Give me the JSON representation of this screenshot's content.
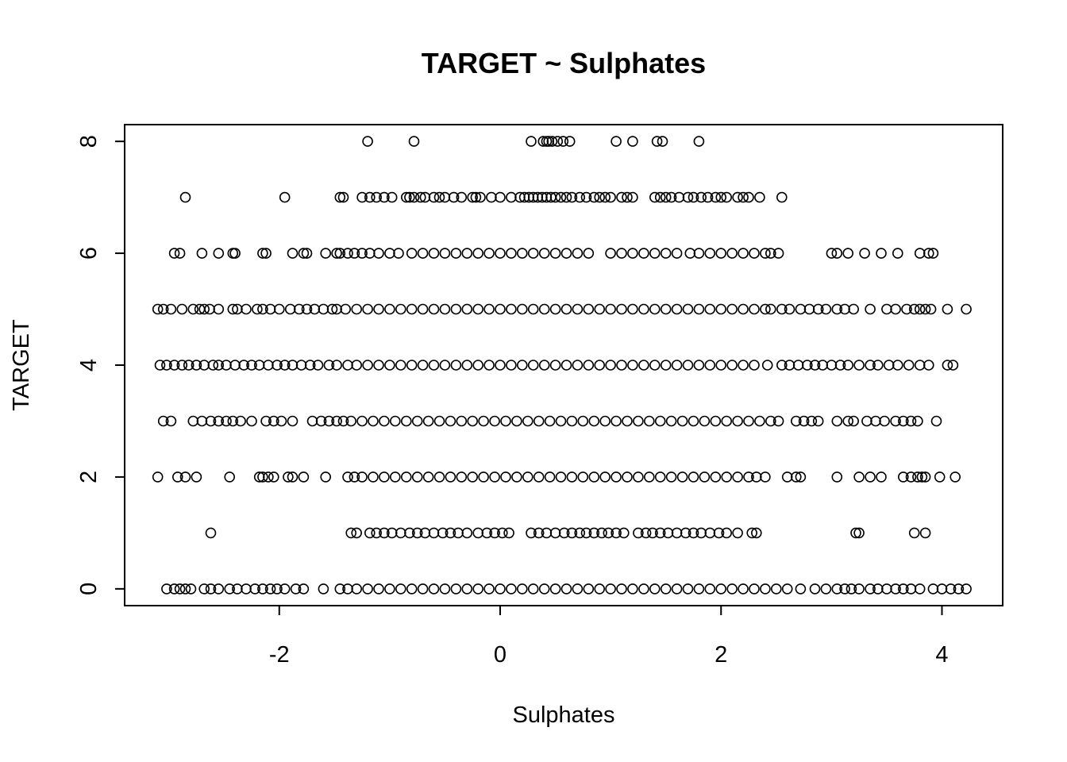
{
  "chart_data": {
    "type": "scatter",
    "title": "TARGET ~ Sulphates",
    "xlabel": "Sulphates",
    "ylabel": "TARGET",
    "xlim": [
      -3.4,
      4.55
    ],
    "ylim": [
      -0.3,
      8.3
    ],
    "xticks": [
      -2,
      0,
      2,
      4
    ],
    "yticks": [
      0,
      2,
      4,
      6,
      8
    ],
    "grid": false,
    "legend": "none",
    "marker": "open-circle",
    "series": [
      {
        "y": 8,
        "x": [
          -1.2,
          -0.78,
          0.28,
          0.39,
          0.42,
          0.44,
          0.47,
          0.52,
          0.57,
          0.63,
          1.05,
          1.2,
          1.42,
          1.47,
          1.8
        ]
      },
      {
        "y": 7,
        "x": [
          -2.85,
          -1.95,
          -1.45,
          -1.42,
          -1.25,
          -1.18,
          -1.12,
          -1.05,
          -0.98,
          -0.85,
          -0.82,
          -0.78,
          -0.72,
          -0.68,
          -0.6,
          -0.55,
          -0.5,
          -0.42,
          -0.35,
          -0.25,
          -0.22,
          -0.18,
          -0.08,
          0.0,
          0.1,
          0.18,
          0.22,
          0.26,
          0.3,
          0.34,
          0.38,
          0.42,
          0.46,
          0.5,
          0.55,
          0.6,
          0.65,
          0.72,
          0.78,
          0.85,
          0.9,
          0.95,
          1.0,
          1.1,
          1.15,
          1.2,
          1.4,
          1.45,
          1.5,
          1.55,
          1.62,
          1.7,
          1.75,
          1.82,
          1.88,
          1.95,
          2.0,
          2.05,
          2.15,
          2.2,
          2.25,
          2.35,
          2.55
        ]
      },
      {
        "y": 6,
        "x": [
          -2.95,
          -2.9,
          -2.7,
          -2.55,
          -2.42,
          -2.4,
          -2.15,
          -2.12,
          -1.88,
          -1.78,
          -1.75,
          -1.58,
          -1.48,
          -1.45,
          -1.38,
          -1.32,
          -1.25,
          -1.18,
          -1.1,
          -1.0,
          -0.92,
          -0.8,
          -0.7,
          -0.6,
          -0.5,
          -0.4,
          -0.3,
          -0.2,
          -0.1,
          0.0,
          0.1,
          0.2,
          0.3,
          0.4,
          0.5,
          0.6,
          0.7,
          0.8,
          1.0,
          1.1,
          1.2,
          1.3,
          1.4,
          1.5,
          1.6,
          1.72,
          1.8,
          1.9,
          2.0,
          2.1,
          2.2,
          2.3,
          2.4,
          2.45,
          2.52,
          3.0,
          3.05,
          3.15,
          3.3,
          3.45,
          3.6,
          3.8,
          3.88,
          3.92
        ]
      },
      {
        "y": 5,
        "x": [
          -3.1,
          -3.05,
          -2.98,
          -2.88,
          -2.78,
          -2.72,
          -2.68,
          -2.63,
          -2.55,
          -2.42,
          -2.38,
          -2.3,
          -2.2,
          -2.15,
          -2.08,
          -2.0,
          -1.9,
          -1.82,
          -1.75,
          -1.68,
          -1.6,
          -1.52,
          -1.48,
          -1.4,
          -1.3,
          -1.2,
          -1.1,
          -1.0,
          -0.9,
          -0.8,
          -0.7,
          -0.6,
          -0.5,
          -0.4,
          -0.3,
          -0.2,
          -0.1,
          0.0,
          0.1,
          0.2,
          0.3,
          0.4,
          0.5,
          0.6,
          0.7,
          0.8,
          0.9,
          1.0,
          1.1,
          1.2,
          1.3,
          1.4,
          1.5,
          1.6,
          1.7,
          1.8,
          1.9,
          2.0,
          2.1,
          2.2,
          2.3,
          2.4,
          2.45,
          2.55,
          2.62,
          2.72,
          2.8,
          2.88,
          2.95,
          3.05,
          3.12,
          3.2,
          3.35,
          3.5,
          3.58,
          3.68,
          3.75,
          3.8,
          3.85,
          3.9,
          4.05,
          4.22
        ]
      },
      {
        "y": 4,
        "x": [
          -3.08,
          -3.02,
          -2.95,
          -2.88,
          -2.82,
          -2.75,
          -2.68,
          -2.6,
          -2.55,
          -2.48,
          -2.4,
          -2.32,
          -2.25,
          -2.18,
          -2.1,
          -2.02,
          -1.95,
          -1.88,
          -1.8,
          -1.72,
          -1.65,
          -1.55,
          -1.48,
          -1.38,
          -1.3,
          -1.2,
          -1.1,
          -1.0,
          -0.9,
          -0.8,
          -0.7,
          -0.6,
          -0.5,
          -0.4,
          -0.3,
          -0.2,
          -0.1,
          0.0,
          0.1,
          0.2,
          0.3,
          0.4,
          0.5,
          0.6,
          0.7,
          0.8,
          0.9,
          1.0,
          1.1,
          1.2,
          1.3,
          1.4,
          1.5,
          1.6,
          1.7,
          1.8,
          1.9,
          2.0,
          2.1,
          2.2,
          2.3,
          2.42,
          2.55,
          2.62,
          2.7,
          2.78,
          2.85,
          2.92,
          3.0,
          3.08,
          3.15,
          3.25,
          3.35,
          3.42,
          3.52,
          3.6,
          3.7,
          3.8,
          3.88,
          4.05,
          4.1
        ]
      },
      {
        "y": 3,
        "x": [
          -3.05,
          -2.98,
          -2.78,
          -2.7,
          -2.62,
          -2.55,
          -2.48,
          -2.42,
          -2.35,
          -2.25,
          -2.12,
          -2.05,
          -1.98,
          -1.88,
          -1.7,
          -1.62,
          -1.55,
          -1.48,
          -1.42,
          -1.35,
          -1.25,
          -1.15,
          -1.05,
          -0.95,
          -0.85,
          -0.75,
          -0.65,
          -0.55,
          -0.45,
          -0.35,
          -0.25,
          -0.15,
          -0.05,
          0.05,
          0.15,
          0.25,
          0.35,
          0.45,
          0.55,
          0.65,
          0.75,
          0.85,
          0.95,
          1.05,
          1.15,
          1.25,
          1.35,
          1.45,
          1.55,
          1.65,
          1.75,
          1.85,
          1.95,
          2.05,
          2.15,
          2.25,
          2.35,
          2.45,
          2.52,
          2.68,
          2.75,
          2.82,
          2.88,
          3.05,
          3.15,
          3.2,
          3.32,
          3.4,
          3.48,
          3.58,
          3.65,
          3.72,
          3.78,
          3.95
        ]
      },
      {
        "y": 2,
        "x": [
          -3.1,
          -2.92,
          -2.85,
          -2.75,
          -2.45,
          -2.18,
          -2.15,
          -2.1,
          -2.05,
          -1.92,
          -1.88,
          -1.78,
          -1.58,
          -1.38,
          -1.32,
          -1.25,
          -1.15,
          -1.05,
          -0.95,
          -0.85,
          -0.75,
          -0.65,
          -0.55,
          -0.45,
          -0.35,
          -0.25,
          -0.15,
          -0.05,
          0.05,
          0.15,
          0.25,
          0.35,
          0.45,
          0.55,
          0.65,
          0.75,
          0.85,
          0.95,
          1.05,
          1.15,
          1.25,
          1.35,
          1.45,
          1.55,
          1.65,
          1.75,
          1.85,
          1.95,
          2.05,
          2.15,
          2.25,
          2.32,
          2.4,
          2.6,
          2.68,
          2.72,
          3.05,
          3.25,
          3.35,
          3.45,
          3.65,
          3.72,
          3.78,
          3.82,
          3.85,
          3.98,
          4.12
        ]
      },
      {
        "y": 1,
        "x": [
          -2.62,
          -1.35,
          -1.3,
          -1.18,
          -1.12,
          -1.05,
          -0.98,
          -0.9,
          -0.82,
          -0.75,
          -0.68,
          -0.6,
          -0.52,
          -0.45,
          -0.38,
          -0.3,
          -0.2,
          -0.12,
          -0.05,
          0.02,
          0.08,
          0.28,
          0.35,
          0.42,
          0.5,
          0.58,
          0.65,
          0.72,
          0.78,
          0.85,
          0.92,
          0.98,
          1.05,
          1.12,
          1.25,
          1.32,
          1.38,
          1.45,
          1.52,
          1.6,
          1.68,
          1.75,
          1.82,
          1.9,
          1.98,
          2.05,
          2.15,
          2.28,
          2.32,
          3.22,
          3.25,
          3.75,
          3.85
        ]
      },
      {
        "y": 0,
        "x": [
          -3.02,
          -2.95,
          -2.9,
          -2.85,
          -2.8,
          -2.68,
          -2.62,
          -2.55,
          -2.45,
          -2.38,
          -2.3,
          -2.22,
          -2.15,
          -2.08,
          -2.02,
          -1.95,
          -1.85,
          -1.78,
          -1.6,
          -1.45,
          -1.38,
          -1.3,
          -1.2,
          -1.1,
          -1.0,
          -0.9,
          -0.8,
          -0.7,
          -0.6,
          -0.5,
          -0.4,
          -0.3,
          -0.2,
          -0.1,
          0.0,
          0.1,
          0.2,
          0.3,
          0.4,
          0.5,
          0.6,
          0.7,
          0.8,
          0.9,
          1.0,
          1.1,
          1.2,
          1.3,
          1.4,
          1.5,
          1.6,
          1.7,
          1.8,
          1.9,
          2.0,
          2.1,
          2.2,
          2.3,
          2.4,
          2.5,
          2.6,
          2.72,
          2.85,
          2.95,
          3.05,
          3.12,
          3.18,
          3.25,
          3.35,
          3.42,
          3.5,
          3.58,
          3.65,
          3.72,
          3.8,
          3.92,
          4.0,
          4.08,
          4.15,
          4.22
        ]
      }
    ]
  }
}
